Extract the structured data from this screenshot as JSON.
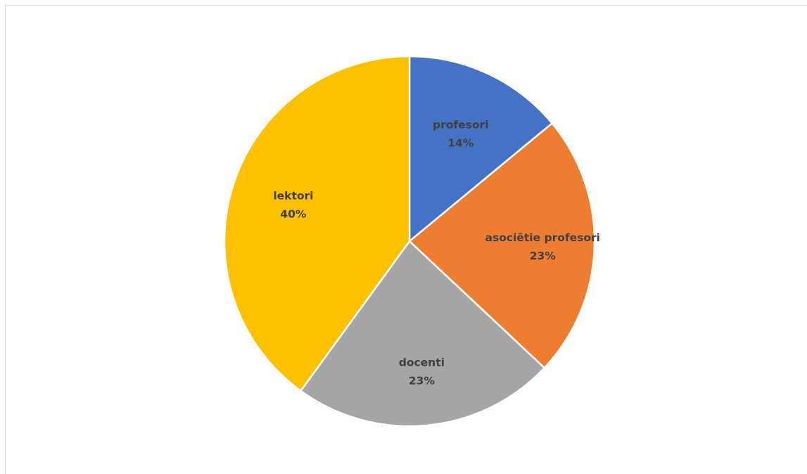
{
  "chart_data": {
    "type": "pie",
    "categories": [
      "profesori",
      "asociētie profesori",
      "docenti",
      "lektori"
    ],
    "values": [
      14,
      23,
      23,
      40
    ],
    "data_labels": [
      "14%",
      "23%",
      "23%",
      "40%"
    ],
    "colors": [
      "#4472c4",
      "#ed7d31",
      "#a5a5a5",
      "#ffc000"
    ],
    "legend": "none",
    "label_position": "inside"
  }
}
